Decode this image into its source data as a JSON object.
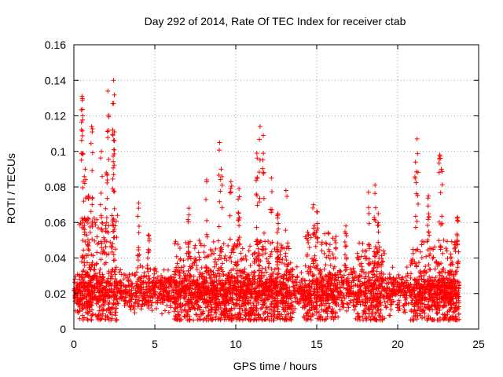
{
  "chart_data": {
    "type": "scatter",
    "title": "Day 292 of 2014, Rate Of TEC Index for receiver ctab",
    "xlabel": "GPS time / hours",
    "ylabel": "ROTI / TECUs",
    "xlim": [
      0,
      24
    ],
    "ylim": [
      0,
      0.16
    ],
    "xticks": [
      0,
      5,
      10,
      15,
      20,
      25
    ],
    "xtick_labels": [
      "0",
      "5",
      "10",
      "15",
      "20",
      "25"
    ],
    "yticks": [
      0,
      0.02,
      0.04,
      0.06,
      0.08,
      0.1,
      0.12,
      0.14,
      0.16
    ],
    "ytick_labels": [
      "0",
      "0.02",
      "0.04",
      "0.06",
      "0.08",
      "0.1",
      "0.12",
      "0.14",
      "0.16"
    ],
    "grid": true,
    "marker": "+",
    "marker_color": "#ff0000",
    "baseline": {
      "typical_min": 0.005,
      "typical_max": 0.035,
      "dense_center": 0.018
    },
    "spikes": [
      {
        "x": 0.5,
        "y": 0.131
      },
      {
        "x": 0.55,
        "y": 0.12
      },
      {
        "x": 1.1,
        "y": 0.114
      },
      {
        "x": 1.7,
        "y": 0.1
      },
      {
        "x": 2.1,
        "y": 0.134
      },
      {
        "x": 2.45,
        "y": 0.14
      },
      {
        "x": 2.4,
        "y": 0.127
      },
      {
        "x": 2.5,
        "y": 0.106
      },
      {
        "x": 2.0,
        "y": 0.088
      },
      {
        "x": 0.7,
        "y": 0.09
      },
      {
        "x": 0.9,
        "y": 0.075
      },
      {
        "x": 4.0,
        "y": 0.071
      },
      {
        "x": 4.6,
        "y": 0.053
      },
      {
        "x": 8.2,
        "y": 0.084
      },
      {
        "x": 7.1,
        "y": 0.068
      },
      {
        "x": 9.0,
        "y": 0.105
      },
      {
        "x": 9.1,
        "y": 0.09
      },
      {
        "x": 9.7,
        "y": 0.083
      },
      {
        "x": 10.2,
        "y": 0.079
      },
      {
        "x": 11.3,
        "y": 0.099
      },
      {
        "x": 11.5,
        "y": 0.114
      },
      {
        "x": 11.7,
        "y": 0.109
      },
      {
        "x": 12.2,
        "y": 0.085
      },
      {
        "x": 12.6,
        "y": 0.065
      },
      {
        "x": 13.1,
        "y": 0.078
      },
      {
        "x": 14.8,
        "y": 0.07
      },
      {
        "x": 15.0,
        "y": 0.066
      },
      {
        "x": 16.8,
        "y": 0.058
      },
      {
        "x": 18.2,
        "y": 0.077
      },
      {
        "x": 18.6,
        "y": 0.081
      },
      {
        "x": 18.8,
        "y": 0.065
      },
      {
        "x": 21.2,
        "y": 0.107
      },
      {
        "x": 21.1,
        "y": 0.094
      },
      {
        "x": 21.9,
        "y": 0.075
      },
      {
        "x": 22.6,
        "y": 0.098
      },
      {
        "x": 22.7,
        "y": 0.09
      },
      {
        "x": 23.7,
        "y": 0.063
      }
    ],
    "active_periods": [
      {
        "start": 0.3,
        "end": 2.7,
        "level": 0.06
      },
      {
        "start": 6.2,
        "end": 13.5,
        "level": 0.045
      },
      {
        "start": 14.2,
        "end": 16.2,
        "level": 0.05
      },
      {
        "start": 17.5,
        "end": 19.2,
        "level": 0.045
      },
      {
        "start": 20.8,
        "end": 23.8,
        "level": 0.045
      }
    ]
  }
}
